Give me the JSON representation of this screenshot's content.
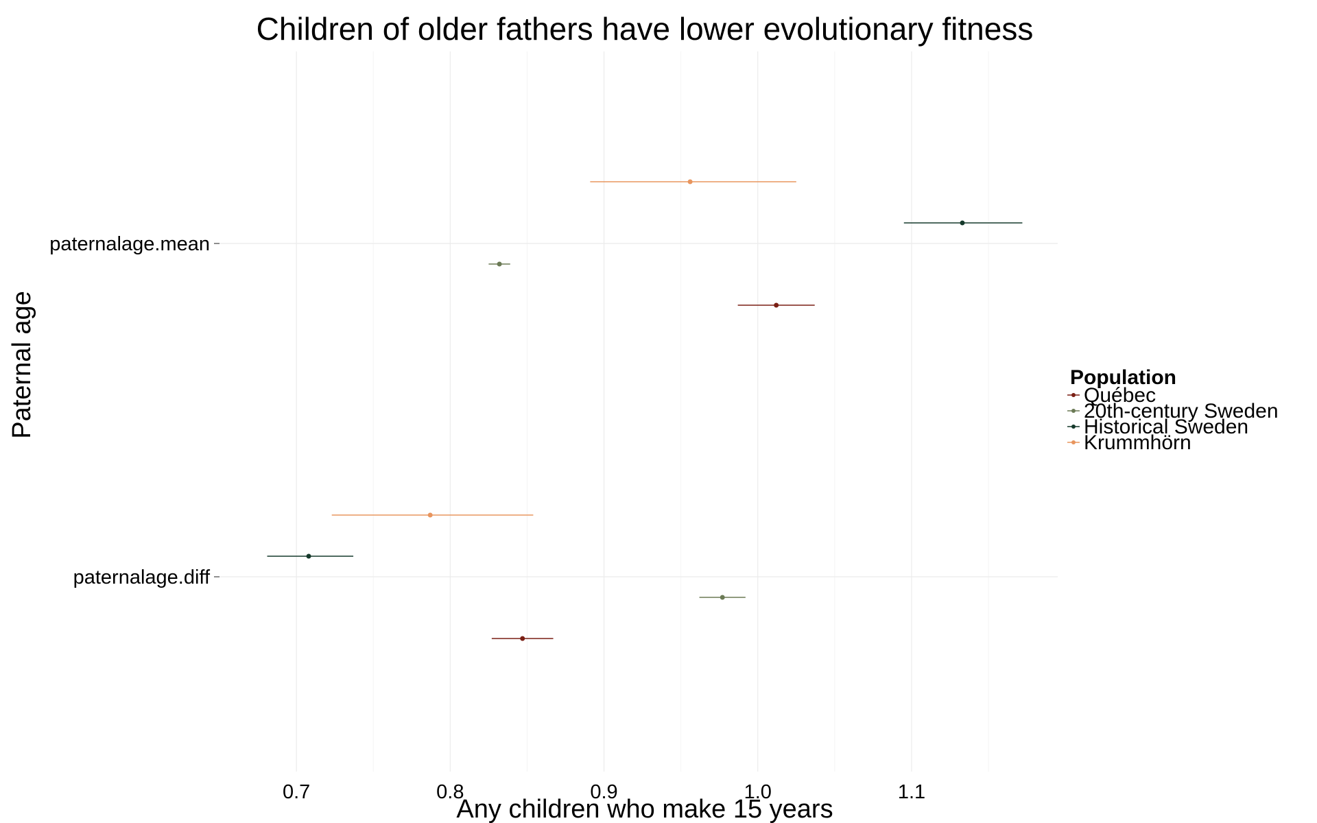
{
  "chart_data": {
    "type": "scatter",
    "title": "Children of older fathers have lower evolutionary fitness",
    "xlabel": "Any children who make 15 years",
    "ylabel": "Paternal age",
    "xlim": [
      0.65,
      1.195
    ],
    "x_ticks": [
      "0.7",
      "0.8",
      "0.9",
      "1.0",
      "1.1"
    ],
    "x_tick_values": [
      0.7,
      0.8,
      0.9,
      1.0,
      1.1
    ],
    "categories": [
      "paternalage.mean",
      "paternalage.diff"
    ],
    "grid": true,
    "legend_position": "right",
    "legend_title": "Population",
    "series": [
      {
        "name": "Québec",
        "color": "#7a1f14",
        "values": [
          {
            "category": "paternalage.mean",
            "estimate": 1.012,
            "low": 0.987,
            "high": 1.037
          },
          {
            "category": "paternalage.diff",
            "estimate": 0.847,
            "low": 0.827,
            "high": 0.867
          }
        ]
      },
      {
        "name": "20th-century Sweden",
        "color": "#6b7a55",
        "values": [
          {
            "category": "paternalage.mean",
            "estimate": 0.832,
            "low": 0.825,
            "high": 0.839
          },
          {
            "category": "paternalage.diff",
            "estimate": 0.977,
            "low": 0.962,
            "high": 0.992
          }
        ]
      },
      {
        "name": "Historical Sweden",
        "color": "#15392b",
        "values": [
          {
            "category": "paternalage.mean",
            "estimate": 1.133,
            "low": 1.095,
            "high": 1.172
          },
          {
            "category": "paternalage.diff",
            "estimate": 0.708,
            "low": 0.681,
            "high": 0.737
          }
        ]
      },
      {
        "name": "Krummhörn",
        "color": "#e8955e",
        "values": [
          {
            "category": "paternalage.mean",
            "estimate": 0.956,
            "low": 0.891,
            "high": 1.025
          },
          {
            "category": "paternalage.diff",
            "estimate": 0.787,
            "low": 0.723,
            "high": 0.854
          }
        ]
      }
    ]
  }
}
